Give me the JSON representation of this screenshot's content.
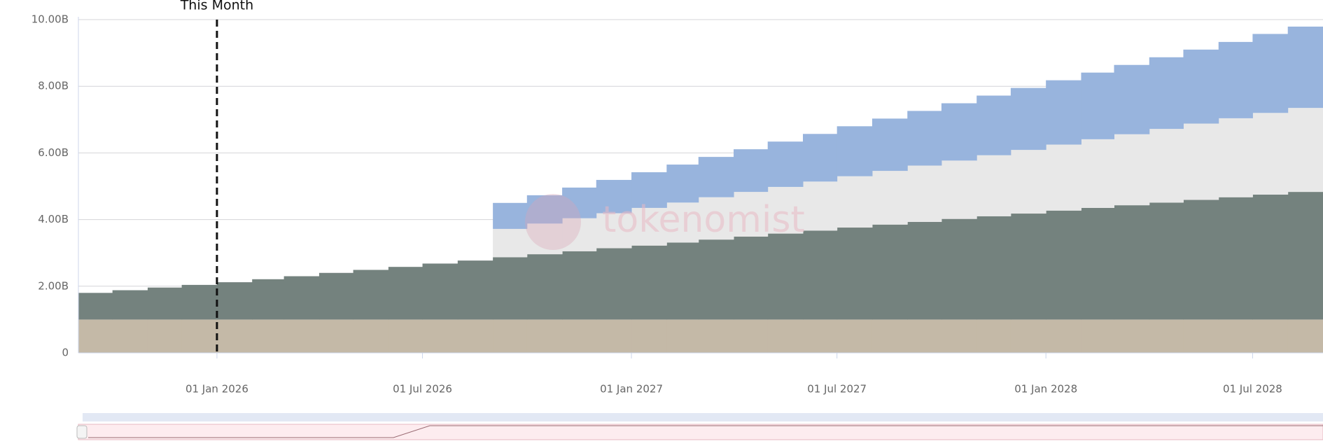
{
  "chart_data": {
    "type": "stacked-step-area",
    "x": [
      "2025-09-01",
      "2025-10-01",
      "2025-11-01",
      "2025-12-01",
      "2026-01-01",
      "2026-02-01",
      "2026-03-01",
      "2026-04-01",
      "2026-05-01",
      "2026-06-01",
      "2026-07-01",
      "2026-08-01",
      "2026-09-01",
      "2026-10-01",
      "2026-11-01",
      "2026-12-01",
      "2027-01-01",
      "2027-02-01",
      "2027-03-01",
      "2027-04-01",
      "2027-05-01",
      "2027-06-01",
      "2027-07-01",
      "2027-08-01",
      "2027-09-01",
      "2027-10-01",
      "2027-11-01",
      "2027-12-01",
      "2028-01-01",
      "2028-02-01",
      "2028-03-01",
      "2028-04-01",
      "2028-05-01",
      "2028-06-01",
      "2028-07-01",
      "2028-08-01"
    ],
    "series": [
      {
        "color": "#c4b9a7",
        "values": [
          1.0,
          1.0,
          1.0,
          1.0,
          1.0,
          1.0,
          1.0,
          1.0,
          1.0,
          1.0,
          1.0,
          1.0,
          1.0,
          1.0,
          1.0,
          1.0,
          1.0,
          1.0,
          1.0,
          1.0,
          1.0,
          1.0,
          1.0,
          1.0,
          1.0,
          1.0,
          1.0,
          1.0,
          1.0,
          1.0,
          1.0,
          1.0,
          1.0,
          1.0,
          1.0,
          1.0
        ]
      },
      {
        "color": "#74827e",
        "values": [
          0.8,
          0.88,
          0.96,
          1.04,
          1.12,
          1.21,
          1.3,
          1.4,
          1.49,
          1.58,
          1.68,
          1.77,
          1.87,
          1.96,
          2.05,
          2.14,
          2.22,
          2.31,
          2.4,
          2.49,
          2.58,
          2.67,
          2.76,
          2.85,
          2.93,
          3.02,
          3.1,
          3.18,
          3.27,
          3.35,
          3.43,
          3.51,
          3.59,
          3.67,
          3.75,
          3.83
        ]
      },
      {
        "color": "#e8e8e8",
        "values": [
          null,
          null,
          null,
          null,
          null,
          null,
          null,
          null,
          null,
          null,
          null,
          null,
          0.85,
          0.92,
          0.99,
          1.05,
          1.13,
          1.2,
          1.27,
          1.34,
          1.4,
          1.47,
          1.54,
          1.61,
          1.69,
          1.75,
          1.83,
          1.91,
          1.98,
          2.06,
          2.13,
          2.21,
          2.29,
          2.37,
          2.45,
          2.52
        ]
      },
      {
        "color": "#98b4dd",
        "values": [
          null,
          null,
          null,
          null,
          null,
          null,
          null,
          null,
          null,
          null,
          null,
          null,
          0.78,
          0.85,
          0.92,
          1.0,
          1.07,
          1.14,
          1.21,
          1.28,
          1.36,
          1.43,
          1.5,
          1.57,
          1.64,
          1.72,
          1.79,
          1.86,
          1.93,
          2.0,
          2.08,
          2.15,
          2.22,
          2.29,
          2.37,
          2.44
        ]
      }
    ],
    "xlim": [
      "2025-09-01",
      "2028-09-01"
    ],
    "xticks": [
      {
        "value": "2026-01-01",
        "label": "01 Jan 2026"
      },
      {
        "value": "2026-07-01",
        "label": "01 Jul 2026"
      },
      {
        "value": "2027-01-01",
        "label": "01 Jan 2027"
      },
      {
        "value": "2027-07-01",
        "label": "01 Jul 2027"
      },
      {
        "value": "2028-01-01",
        "label": "01 Jan 2028"
      },
      {
        "value": "2028-07-01",
        "label": "01 Jul 2028"
      }
    ],
    "ylim": [
      0,
      10
    ],
    "yticks": [
      0,
      {
        "value": 2,
        "label": "2.00B"
      },
      {
        "value": 4,
        "label": "4.00B"
      },
      {
        "value": 6,
        "label": "6.00B"
      },
      {
        "value": 8,
        "label": "8.00B"
      },
      {
        "value": 10,
        "label": "10.00B"
      }
    ],
    "grid": true,
    "annotation": {
      "text": "This Month",
      "x": "2026-01-01"
    },
    "watermark": "tokenomist"
  }
}
